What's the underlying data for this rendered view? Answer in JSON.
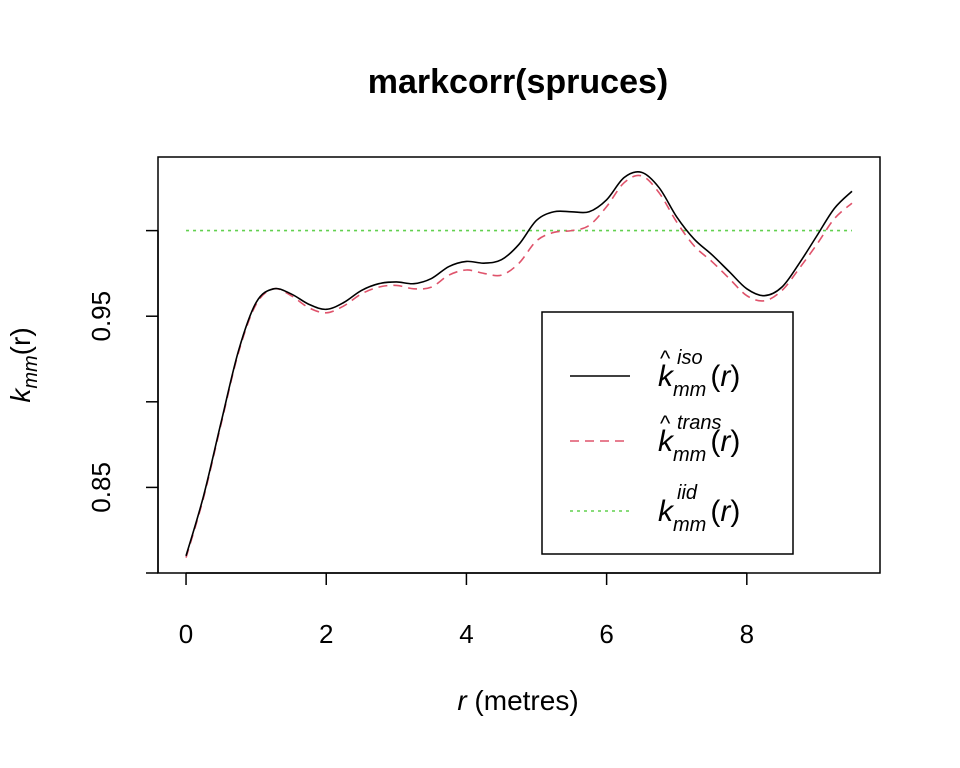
{
  "chart_data": {
    "type": "line",
    "title": "markcorr(spruces)",
    "xlabel": {
      "var": "r",
      "unit": " (metres)"
    },
    "ylabel": {
      "main": "k",
      "sub": "mm",
      "arg": "(r)"
    },
    "xlim": [
      -0.4,
      9.9
    ],
    "ylim": [
      0.8,
      1.043
    ],
    "xticks": [
      0,
      2,
      4,
      6,
      8
    ],
    "yticks": [
      0.8,
      0.85,
      0.9,
      0.95,
      1.0
    ],
    "ytick_labels": [
      "0.85",
      "0.95"
    ],
    "ytick_label_values": [
      0.85,
      0.95
    ],
    "legend_position": "bottom-right",
    "series": [
      {
        "key": "iso",
        "legend": {
          "main": "k",
          "hat": true,
          "sub": "mm",
          "sup": "iso",
          "arg": "(r)"
        },
        "color": "#000000",
        "dash": "none",
        "x": [
          0,
          0.25,
          0.5,
          0.75,
          1.0,
          1.25,
          1.5,
          1.75,
          2.0,
          2.25,
          2.5,
          2.75,
          3.0,
          3.25,
          3.5,
          3.75,
          4.0,
          4.25,
          4.5,
          4.75,
          5.0,
          5.25,
          5.5,
          5.75,
          6.0,
          6.25,
          6.5,
          6.75,
          7.0,
          7.25,
          7.5,
          7.75,
          8.0,
          8.25,
          8.5,
          8.75,
          9.0,
          9.25,
          9.5
        ],
        "y": [
          0.81,
          0.845,
          0.888,
          0.93,
          0.958,
          0.966,
          0.963,
          0.957,
          0.954,
          0.958,
          0.965,
          0.969,
          0.97,
          0.969,
          0.972,
          0.979,
          0.982,
          0.981,
          0.983,
          0.992,
          1.006,
          1.011,
          1.011,
          1.011,
          1.018,
          1.031,
          1.034,
          1.025,
          1.008,
          0.995,
          0.986,
          0.976,
          0.966,
          0.962,
          0.967,
          0.981,
          0.997,
          1.013,
          1.023
        ]
      },
      {
        "key": "trans",
        "legend": {
          "main": "k",
          "hat": true,
          "sub": "mm",
          "sup": "trans",
          "arg": "(r)"
        },
        "color": "#DF536B",
        "dash": "9,6",
        "x": [
          0,
          0.25,
          0.5,
          0.75,
          1.0,
          1.25,
          1.5,
          1.75,
          2.0,
          2.25,
          2.5,
          2.75,
          3.0,
          3.25,
          3.5,
          3.75,
          4.0,
          4.25,
          4.5,
          4.75,
          5.0,
          5.25,
          5.5,
          5.75,
          6.0,
          6.25,
          6.5,
          6.75,
          7.0,
          7.25,
          7.5,
          7.75,
          8.0,
          8.25,
          8.5,
          8.75,
          9.0,
          9.25,
          9.5
        ],
        "y": [
          0.809,
          0.844,
          0.887,
          0.929,
          0.957,
          0.966,
          0.962,
          0.955,
          0.952,
          0.956,
          0.963,
          0.967,
          0.968,
          0.966,
          0.967,
          0.974,
          0.977,
          0.975,
          0.974,
          0.981,
          0.994,
          0.999,
          1.0,
          1.003,
          1.014,
          1.028,
          1.032,
          1.022,
          1.005,
          0.991,
          0.982,
          0.972,
          0.962,
          0.959,
          0.965,
          0.978,
          0.992,
          1.007,
          1.016
        ]
      },
      {
        "key": "iid",
        "legend": {
          "main": "k",
          "hat": false,
          "sub": "mm",
          "sup": "iid",
          "arg": "(r)"
        },
        "color": "#61D04F",
        "dash": "3,4",
        "x": [
          0,
          9.5
        ],
        "y": [
          1.0,
          1.0
        ]
      }
    ]
  }
}
